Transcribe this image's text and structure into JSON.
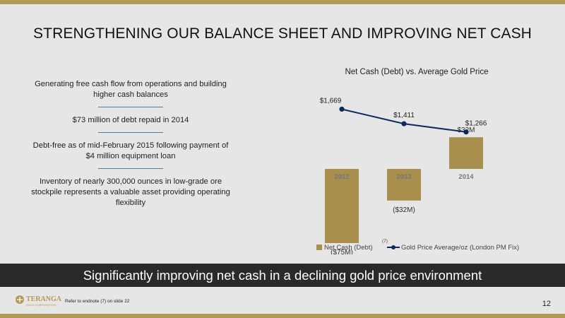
{
  "slide": {
    "title": "STRENGTHENING OUR BALANCE SHEET AND IMPROVING NET CASH",
    "banner": "Significantly improving net cash in a declining gold price environment",
    "endnote": "Refer to endnote (7) on slide 22",
    "page_number": "12",
    "logo_text": "TERANGA",
    "logo_subtext": "GOLD CORPORATION"
  },
  "bullets": [
    "Generating free cash flow from operations and building higher cash balances",
    "$73 million of debt repaid in 2014",
    "Debt-free as of mid-February 2015 following payment of $4 million equipment loan",
    "Inventory of nearly 300,000 ounces in low-grade ore stockpile represents a valuable asset providing operating flexibility"
  ],
  "colors": {
    "bar": "#a88f4e",
    "line": "#0e2a5c",
    "accent": "#b09a55",
    "separator": "#4a7ea3",
    "banner_bg": "#2a2a2a"
  },
  "chart_data": {
    "type": "bar",
    "title": "Net Cash (Debt) vs. Average Gold Price",
    "categories": [
      "2012",
      "2013",
      "2014"
    ],
    "series": [
      {
        "name": "Net Cash (Debt)",
        "type": "bar",
        "values": [
          -75,
          -32,
          32
        ],
        "labels": [
          "($75M)",
          "($32M)",
          "$32M"
        ]
      },
      {
        "name": "Gold Price Average/oz (London PM Fix)",
        "type": "line",
        "values": [
          1669,
          1411,
          1266
        ],
        "labels": [
          "$1,669",
          "$1,411",
          "$1,266"
        ]
      }
    ],
    "legend_note": "(7)",
    "legend_position": "bottom",
    "grid": false
  }
}
